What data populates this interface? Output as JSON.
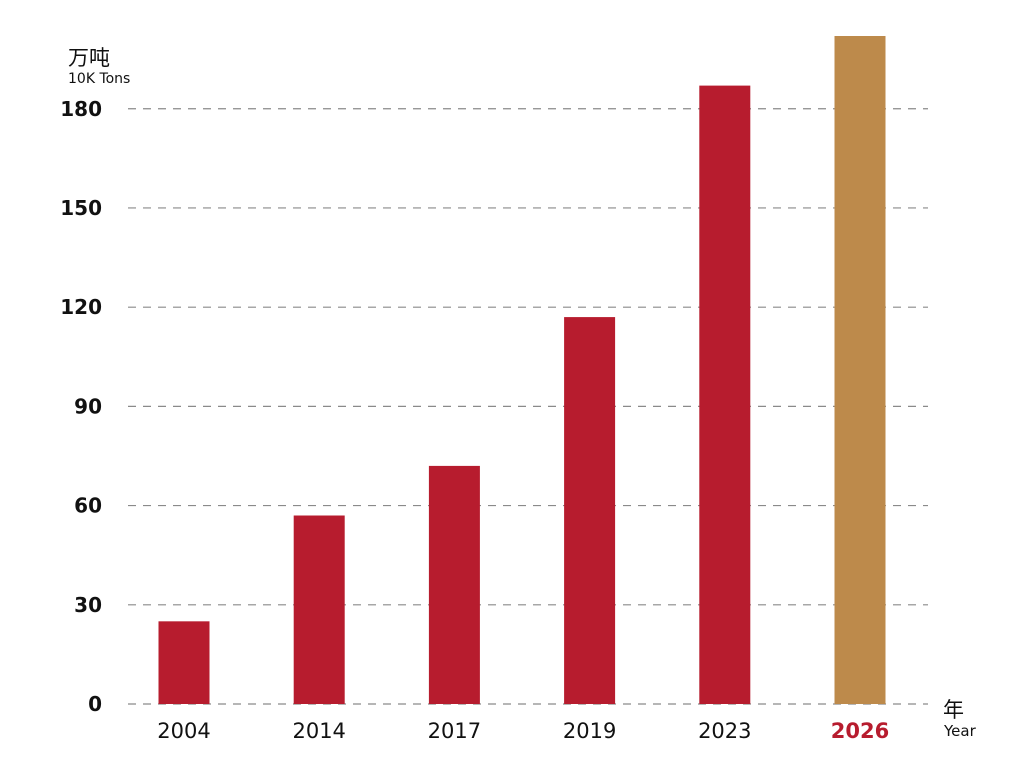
{
  "chart_data": {
    "type": "bar",
    "ylabel_cn": "万吨",
    "ylabel_en": "10K Tons",
    "xlabel_cn": "年",
    "xlabel_en": "Year",
    "categories": [
      "2004",
      "2014",
      "2017",
      "2019",
      "2023",
      "2026"
    ],
    "values": [
      25,
      57,
      72,
      117,
      187,
      202
    ],
    "highlight_category": "2026",
    "yticks": [
      0,
      30,
      60,
      90,
      120,
      150,
      180
    ],
    "ylim": [
      0,
      202
    ],
    "grid": true,
    "colors": {
      "bar": "#b71c2e",
      "highlight_bar": "#bd8a4b",
      "highlight_label": "#b71c2e",
      "grid": "#8a8a8a",
      "text": "#111111"
    }
  }
}
